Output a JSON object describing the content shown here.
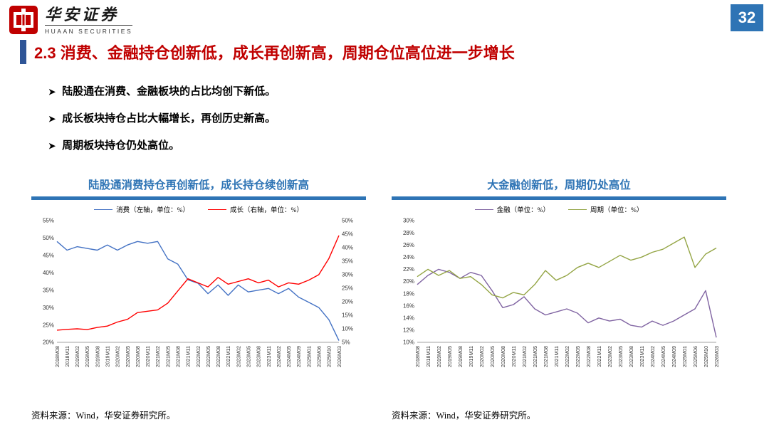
{
  "header": {
    "logo_title": "华安证券",
    "logo_subtitle": "HUAAN SECURITIES",
    "page_number": "32"
  },
  "title": "2.3 消费、金融持仓创新低，成长再创新高，周期仓位高位进一步增长",
  "bullets": [
    "陆股通在消费、金融板块的占比均创下新低。",
    "成长板块持仓占比大幅增长，再创历史新高。",
    "周期板块持仓仍处高位。"
  ],
  "colors": {
    "title_red": "#C00000",
    "accent_blue": "#2F5597",
    "chart_blue": "#2E74B5",
    "badge_blue": "#2E74B5",
    "logo_red": "#C00000"
  },
  "chart_data": [
    {
      "type": "line",
      "title": "陆股通消费持仓再创新低，成长持仓续创新高",
      "source": "资料来源：Wind，华安证券研究所。",
      "categories": [
        "2018M08",
        "2018M11",
        "2019M02",
        "2019M05",
        "2019M08",
        "2019M11",
        "2020M02",
        "2020M05",
        "2020M08",
        "2020M11",
        "2021M02",
        "2021M05",
        "2021M08",
        "2021M11",
        "2022M02",
        "2022M05",
        "2022M08",
        "2022M11",
        "2023M02",
        "2023M05",
        "2023M08",
        "2023M11",
        "2024M02",
        "2024M05",
        "2024M09",
        "2025M01",
        "2025M06",
        "2025M10",
        "2026M03"
      ],
      "left_axis": {
        "min": 20,
        "max": 55,
        "step": 5,
        "unit": "%"
      },
      "right_axis": {
        "min": 5,
        "max": 50,
        "step": 5,
        "unit": "%"
      },
      "series": [
        {
          "name": "消费（左轴，单位：%）",
          "axis": "left",
          "color": "#4472C4",
          "values": [
            49,
            46.5,
            47.5,
            47,
            46.5,
            48,
            46.5,
            48,
            49,
            48.5,
            49,
            44,
            42.5,
            38,
            37,
            34,
            36.5,
            33.5,
            36.5,
            34.5,
            35,
            35.5,
            34,
            35.5,
            33,
            31.5,
            30,
            26.5,
            20.5
          ]
        },
        {
          "name": "成长（右轴，单位：%）",
          "axis": "right",
          "color": "#FF0000",
          "values": [
            9.5,
            9.8,
            10,
            9.7,
            10.5,
            11,
            12.5,
            13.5,
            16,
            16.5,
            17,
            19.5,
            24,
            28.5,
            27,
            25.5,
            29,
            26.5,
            27.5,
            28.5,
            27,
            28,
            25.5,
            27,
            26.5,
            28,
            30,
            36,
            44.5
          ]
        }
      ]
    },
    {
      "type": "line",
      "title": "大金融创新低，周期仍处高位",
      "source": "资料来源：Wind，华安证券研究所。",
      "categories": [
        "2018M08",
        "2018M11",
        "2019M02",
        "2019M05",
        "2019M08",
        "2019M11",
        "2020M02",
        "2020M05",
        "2020M08",
        "2020M11",
        "2021M02",
        "2021M05",
        "2021M08",
        "2021M11",
        "2022M02",
        "2022M05",
        "2022M08",
        "2022M11",
        "2023M02",
        "2023M05",
        "2023M08",
        "2023M11",
        "2024M02",
        "2024M05",
        "2024M09",
        "2025M01",
        "2025M06",
        "2025M10",
        "2026M03"
      ],
      "left_axis": {
        "min": 10,
        "max": 30,
        "step": 2,
        "unit": "%"
      },
      "series": [
        {
          "name": "金融（单位：%）",
          "axis": "left",
          "color": "#8064A2",
          "values": [
            19.5,
            21,
            22,
            21.5,
            20.5,
            21.5,
            21,
            18.5,
            15.7,
            16.2,
            17.5,
            15.5,
            14.5,
            15,
            15.5,
            14.8,
            13.2,
            14,
            13.5,
            13.8,
            12.8,
            12.5,
            13.5,
            12.8,
            13.5,
            14.5,
            15.5,
            18.5,
            10.8
          ]
        },
        {
          "name": "周期（单位：%）",
          "axis": "left",
          "color": "#94A545",
          "values": [
            20.8,
            22,
            21,
            21.8,
            20.5,
            20.8,
            19.5,
            17.8,
            17.3,
            18.2,
            17.8,
            19.5,
            21.8,
            20.2,
            21,
            22.3,
            23,
            22.3,
            23.3,
            24.3,
            23.5,
            24,
            24.8,
            25.3,
            26.3,
            27.3,
            22.3,
            24.5,
            25.5
          ]
        }
      ]
    }
  ]
}
